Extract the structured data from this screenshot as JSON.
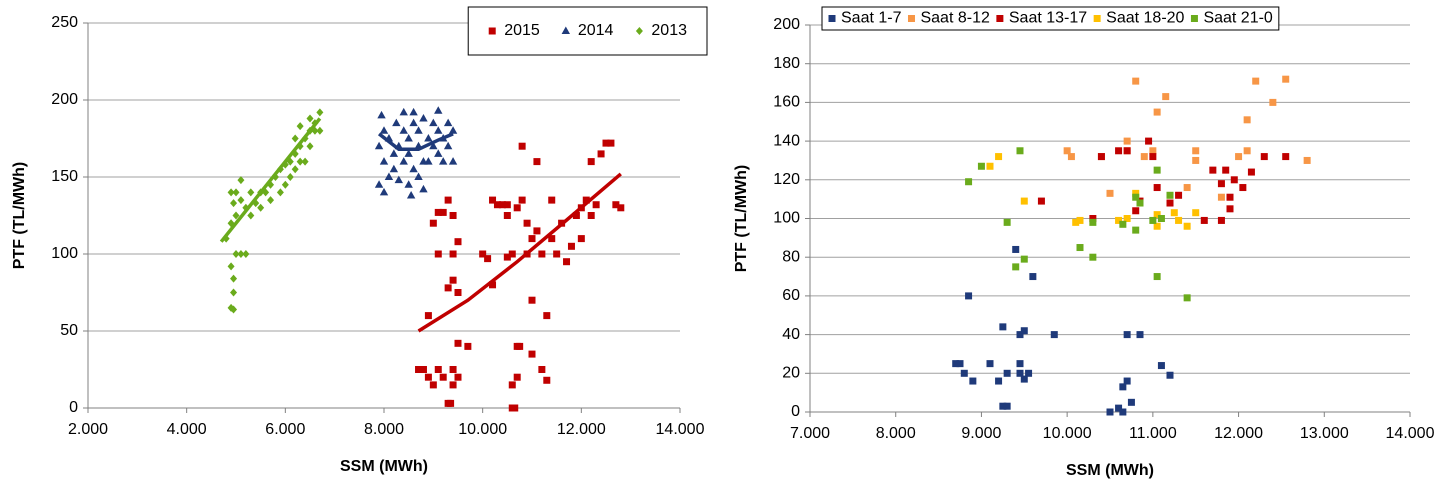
{
  "chart_data": [
    {
      "type": "scatter",
      "x_label": "SSM (MWh)",
      "y_label": "PTF (TL/MWh)",
      "xlim": [
        2000,
        14000
      ],
      "xticks": [
        {
          "value": 2000,
          "label": "2.000"
        },
        {
          "value": 4000,
          "label": "4.000"
        },
        {
          "value": 6000,
          "label": "6.000"
        },
        {
          "value": 8000,
          "label": "8.000"
        },
        {
          "value": 10000,
          "label": "10.000"
        },
        {
          "value": 12000,
          "label": "12.000"
        },
        {
          "value": 14000,
          "label": "14.000"
        }
      ],
      "ylim": [
        0,
        250
      ],
      "yticks": [
        0,
        50,
        100,
        150,
        200,
        250
      ],
      "grid": true,
      "legend": "upper right",
      "series": [
        {
          "name": "2015",
          "color": "#c00000",
          "marker": "square",
          "x": [
            8700,
            8800,
            8900,
            9000,
            9100,
            9200,
            9300,
            9350,
            9400,
            9400,
            9500,
            9500,
            9700,
            8900,
            9100,
            9000,
            9100,
            9200,
            9300,
            9400,
            9400,
            9500,
            9500,
            9400,
            9300,
            10000,
            10100,
            10200,
            10300,
            10400,
            10500,
            10500,
            10600,
            10600,
            10600,
            10650,
            10700,
            10700,
            10750,
            10800,
            10800,
            10900,
            10900,
            11000,
            11000,
            11000,
            11100,
            11100,
            11200,
            11200,
            11300,
            11300,
            11400,
            11400,
            11500,
            11600,
            11700,
            11800,
            11900,
            12000,
            12000,
            12100,
            12200,
            12200,
            12300,
            12400,
            12500,
            12600,
            12700,
            12800,
            10200,
            10500,
            10700
          ],
          "values": [
            25,
            25,
            20,
            15,
            25,
            20,
            3,
            3,
            25,
            15,
            20,
            42,
            40,
            60,
            100,
            120,
            127,
            127,
            135,
            125,
            100,
            108,
            75,
            83,
            78,
            100,
            97,
            80,
            132,
            132,
            132,
            98,
            100,
            0,
            15,
            0,
            40,
            20,
            40,
            135,
            170,
            120,
            100,
            110,
            70,
            35,
            160,
            115,
            100,
            25,
            18,
            60,
            135,
            110,
            100,
            120,
            95,
            105,
            125,
            130,
            110,
            135,
            160,
            125,
            132,
            165,
            172,
            172,
            132,
            130,
            135,
            125,
            130
          ],
          "trendline": {
            "x": [
              8700,
              9700,
              10700,
              11700,
              12800
            ],
            "y": [
              50,
              70,
              95,
              122,
              152
            ]
          }
        },
        {
          "name": "2014",
          "color": "#1f3a7a",
          "marker": "triangle",
          "x": [
            7900,
            8000,
            8100,
            8000,
            7900,
            8000,
            8100,
            8200,
            8200,
            8300,
            8300,
            8400,
            8400,
            8400,
            8500,
            8500,
            8500,
            8600,
            8600,
            8600,
            8700,
            8700,
            8700,
            8800,
            8800,
            8900,
            8900,
            9000,
            9000,
            9100,
            9100,
            9100,
            9200,
            9200,
            9300,
            9300,
            9400,
            9400,
            7950,
            8250,
            8550,
            8800
          ],
          "values": [
            145,
            140,
            150,
            160,
            170,
            180,
            175,
            165,
            155,
            148,
            170,
            160,
            180,
            192,
            145,
            165,
            175,
            155,
            185,
            192,
            150,
            170,
            180,
            160,
            188,
            175,
            160,
            185,
            170,
            165,
            180,
            193,
            175,
            160,
            185,
            170,
            180,
            160,
            190,
            185,
            138,
            142
          ],
          "trendline": {
            "x": [
              7900,
              8300,
              8700,
              9100,
              9400
            ],
            "y": [
              178,
              168,
              168,
              174,
              178
            ]
          }
        },
        {
          "name": "2013",
          "color": "#6aab1c",
          "marker": "diamond",
          "x": [
            4900,
            4950,
            4900,
            4950,
            4950,
            5000,
            5100,
            5200,
            4800,
            4900,
            5000,
            4950,
            5000,
            4900,
            5100,
            5100,
            5200,
            5300,
            5300,
            5400,
            5500,
            5500,
            5600,
            5700,
            5700,
            5800,
            5900,
            5900,
            6000,
            6000,
            6100,
            6100,
            6200,
            6200,
            6300,
            6300,
            6400,
            6400,
            6500,
            6500,
            6600,
            6600,
            6700,
            6700,
            6500,
            6300,
            6200
          ],
          "values": [
            65,
            64,
            92,
            84,
            75,
            100,
            100,
            100,
            110,
            120,
            125,
            133,
            140,
            140,
            135,
            148,
            130,
            125,
            140,
            133,
            140,
            130,
            140,
            145,
            135,
            150,
            140,
            155,
            158,
            145,
            160,
            150,
            165,
            155,
            160,
            170,
            175,
            160,
            180,
            170,
            185,
            180,
            192,
            180,
            188,
            183,
            175
          ],
          "trendline": {
            "x": [
              4700,
              5200,
              5700,
              6200,
              6700
            ],
            "y": [
              108,
              128,
              148,
              168,
              188
            ]
          }
        }
      ]
    },
    {
      "type": "scatter",
      "x_label": "SSM (MWh)",
      "y_label": "PTF (TL/MWh)",
      "xlim": [
        7000,
        14000
      ],
      "xticks": [
        {
          "value": 7000,
          "label": "7.000"
        },
        {
          "value": 8000,
          "label": "8.000"
        },
        {
          "value": 9000,
          "label": "9.000"
        },
        {
          "value": 10000,
          "label": "10.000"
        },
        {
          "value": 11000,
          "label": "11.000"
        },
        {
          "value": 12000,
          "label": "12.000"
        },
        {
          "value": 13000,
          "label": "13.000"
        },
        {
          "value": 14000,
          "label": "14.000"
        }
      ],
      "ylim": [
        0,
        200
      ],
      "yticks": [
        0,
        20,
        40,
        60,
        80,
        100,
        120,
        140,
        160,
        180,
        200
      ],
      "grid": true,
      "legend": "top",
      "series": [
        {
          "name": "Saat 1-7",
          "color": "#1f3a7a",
          "marker": "square",
          "x": [
            8700,
            8750,
            8800,
            8850,
            8900,
            9100,
            9200,
            9250,
            9300,
            9250,
            9300,
            9400,
            9450,
            9450,
            9500,
            9500,
            9550,
            9600,
            9850,
            9450,
            10500,
            10600,
            10650,
            10650,
            10700,
            10700,
            10750,
            10850,
            11100,
            11200
          ],
          "values": [
            25,
            25,
            20,
            60,
            16,
            25,
            16,
            3,
            3,
            44,
            20,
            84,
            20,
            25,
            17,
            42,
            20,
            70,
            40,
            40,
            0,
            2,
            0,
            13,
            16,
            40,
            5,
            40,
            24,
            19
          ]
        },
        {
          "name": "Saat 8-12",
          "color": "#f79646",
          "marker": "square",
          "x": [
            10000,
            10050,
            10400,
            10500,
            10700,
            10700,
            10800,
            10900,
            11000,
            11050,
            11150,
            11400,
            11500,
            11500,
            11800,
            12000,
            12100,
            12100,
            12200,
            12400,
            12550,
            12800
          ],
          "values": [
            135,
            132,
            132,
            113,
            135,
            140,
            171,
            132,
            135,
            155,
            163,
            116,
            135,
            130,
            111,
            132,
            151,
            135,
            171,
            160,
            172,
            130
          ]
        },
        {
          "name": "Saat 13-17",
          "color": "#c00000",
          "marker": "square",
          "x": [
            9700,
            10300,
            10400,
            10600,
            10700,
            10800,
            10850,
            10950,
            11000,
            11050,
            11200,
            11300,
            11600,
            11700,
            11800,
            11850,
            11900,
            11900,
            11950,
            11800,
            12050,
            12150,
            12300,
            12550
          ],
          "values": [
            109,
            100,
            132,
            135,
            135,
            104,
            109,
            140,
            132,
            116,
            108,
            112,
            99,
            125,
            118,
            125,
            105,
            111,
            120,
            99,
            116,
            124,
            132,
            132
          ]
        },
        {
          "name": "Saat 18-20",
          "color": "#ffc000",
          "marker": "square",
          "x": [
            9100,
            9200,
            9500,
            10100,
            10150,
            10600,
            10700,
            10800,
            11050,
            11050,
            11250,
            11300,
            11400,
            11500
          ],
          "values": [
            127,
            132,
            109,
            98,
            99,
            99,
            100,
            113,
            102,
            96,
            103,
            99,
            96,
            103
          ]
        },
        {
          "name": "Saat 21-0",
          "color": "#6aab1c",
          "marker": "square",
          "x": [
            8850,
            9000,
            9300,
            9400,
            9450,
            9500,
            10150,
            10300,
            10300,
            10650,
            10800,
            10800,
            11000,
            11050,
            11050,
            11100,
            11200,
            11400,
            10850
          ],
          "values": [
            119,
            127,
            98,
            75,
            135,
            79,
            85,
            80,
            98,
            97,
            111,
            94,
            99,
            125,
            70,
            100,
            112,
            59,
            108
          ]
        }
      ]
    }
  ]
}
